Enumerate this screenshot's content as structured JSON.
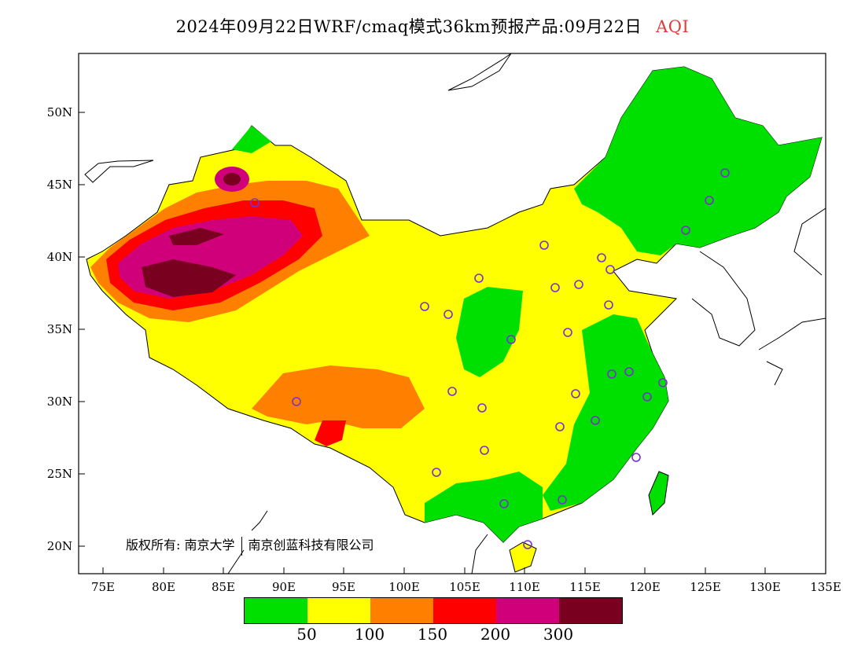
{
  "title": {
    "main": "2024年09月22日WRF/cmaq模式36km预报产品:09月22日",
    "variable": "AQI",
    "variable_color": "#e03a3a"
  },
  "map": {
    "lon_range": [
      73,
      135
    ],
    "lat_range": [
      18,
      54
    ],
    "lat_ticks": [
      "50N",
      "45N",
      "40N",
      "35N",
      "30N",
      "25N",
      "20N"
    ],
    "lon_ticks": [
      "75E",
      "80E",
      "85E",
      "90E",
      "95E",
      "100E",
      "105E",
      "110E",
      "115E",
      "120E",
      "125E",
      "130E",
      "135E"
    ]
  },
  "copyright": {
    "label": "版权所有:",
    "org1": "南京大学",
    "org2": "南京创蓝科技有限公司"
  },
  "legend": {
    "colors": [
      "#00e000",
      "#ffff00",
      "#ff8000",
      "#ff0000",
      "#d0007a",
      "#7a0020"
    ],
    "labels": [
      "50",
      "100",
      "150",
      "200",
      "300"
    ]
  }
}
